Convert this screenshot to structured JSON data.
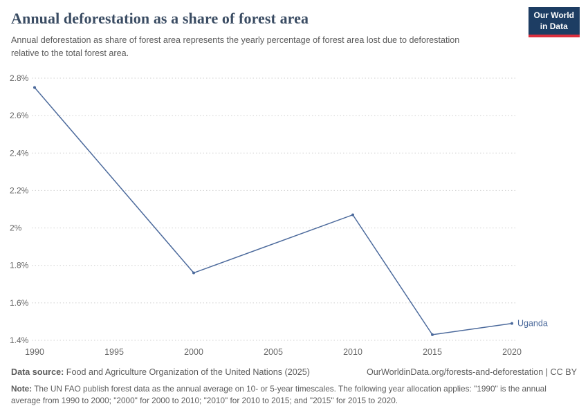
{
  "header": {
    "title": "Annual deforestation as a share of forest area",
    "subtitle": "Annual deforestation as share of forest area represents the yearly percentage of forest area lost due to deforestation relative to the total forest area.",
    "logo": {
      "line1": "Our World",
      "line2": "in Data",
      "bg_color": "#1d3d63",
      "accent_color": "#dc2f3e"
    }
  },
  "chart_data": {
    "type": "line",
    "title": "Annual deforestation as a share of forest area",
    "xlabel": "",
    "ylabel": "",
    "xlim": [
      1990,
      2020
    ],
    "ylim": [
      1.4,
      2.8
    ],
    "grid": "dotted-horizontal",
    "legend_position": "end-of-line-label",
    "line_color": "#4c6a9c",
    "tick_color": "#666666",
    "series": [
      {
        "name": "Uganda",
        "x": [
          1990,
          2000,
          2010,
          2015,
          2020
        ],
        "values": [
          2.75,
          1.76,
          2.07,
          1.43,
          1.49
        ]
      }
    ],
    "xticks": [
      1990,
      1995,
      2000,
      2005,
      2010,
      2015,
      2020
    ],
    "yticks": [
      {
        "value": 1.4,
        "label": "1.4%"
      },
      {
        "value": 1.6,
        "label": "1.6%"
      },
      {
        "value": 1.8,
        "label": "1.8%"
      },
      {
        "value": 2.0,
        "label": "2%"
      },
      {
        "value": 2.2,
        "label": "2.2%"
      },
      {
        "value": 2.4,
        "label": "2.4%"
      },
      {
        "value": 2.6,
        "label": "2.6%"
      },
      {
        "value": 2.8,
        "label": "2.8%"
      }
    ]
  },
  "footer": {
    "data_source_label": "Data source:",
    "data_source": " Food and Agriculture Organization of the United Nations (2025)",
    "link": "OurWorldinData.org/forests-and-deforestation | CC BY",
    "note_label": "Note:",
    "note": " The UN FAO publish forest data as the annual average on 10- or 5-year timescales. The following year allocation applies: \"1990\" is the annual average from 1990 to 2000; \"2000\" for 2000 to 2010; \"2010\" for 2010 to 2015; and \"2015\" for 2015 to 2020."
  }
}
